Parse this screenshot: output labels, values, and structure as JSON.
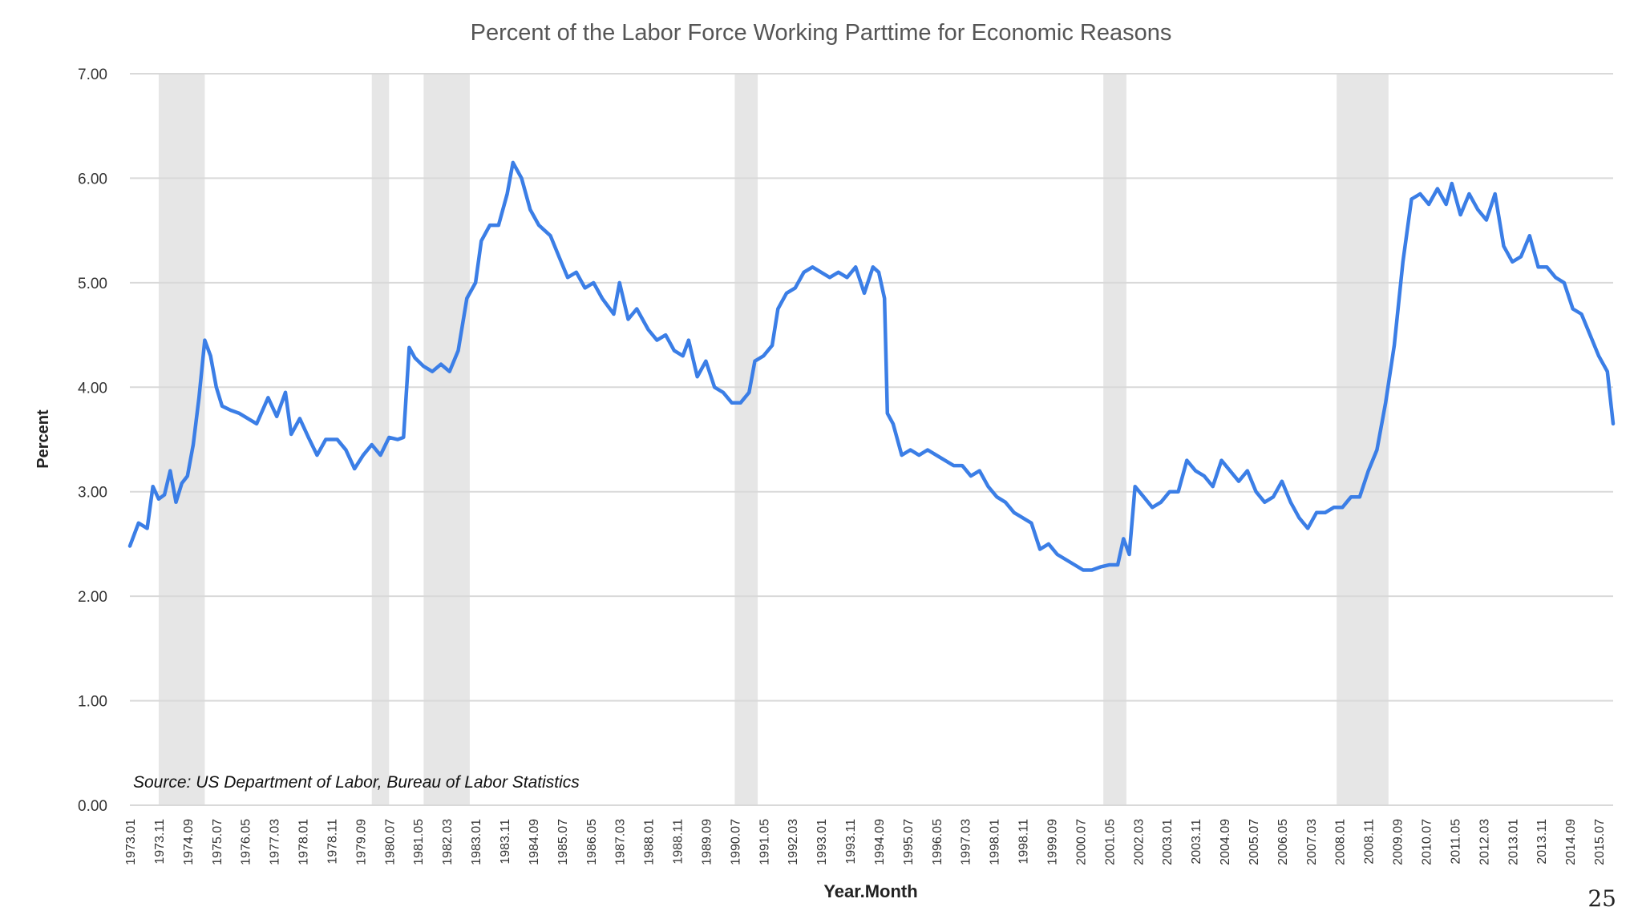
{
  "page": {
    "number": "25"
  },
  "chart_data": {
    "type": "line",
    "title": "Percent of the Labor Force Working Parttime for Economic Reasons",
    "xlabel": "Year.Month",
    "ylabel": "Percent",
    "ylim": [
      0,
      7
    ],
    "yticks": [
      "0.00",
      "1.00",
      "2.00",
      "3.00",
      "4.00",
      "5.00",
      "6.00",
      "7.00"
    ],
    "grid": true,
    "legend": "none",
    "source_note": "Source: US Department of Labor, Bureau of Labor Statistics",
    "colors": {
      "line": "#3b7ee6",
      "recession": "#e6e6e6",
      "grid": "#d9d9d9",
      "text": "#333333"
    },
    "x_range": [
      "1973.01",
      "2015.12"
    ],
    "xticks": [
      "1973.01",
      "1973.11",
      "1974.09",
      "1975.07",
      "1976.05",
      "1977.03",
      "1978.01",
      "1978.11",
      "1979.09",
      "1980.07",
      "1981.05",
      "1982.03",
      "1983.01",
      "1983.11",
      "1984.09",
      "1985.07",
      "1986.05",
      "1987.03",
      "1988.01",
      "1988.11",
      "1989.09",
      "1990.07",
      "1991.05",
      "1992.03",
      "1993.01",
      "1993.11",
      "1994.09",
      "1995.07",
      "1996.05",
      "1997.03",
      "1998.01",
      "1998.11",
      "1999.09",
      "2000.07",
      "2001.05",
      "2002.03",
      "2003.01",
      "2003.11",
      "2004.09",
      "2005.07",
      "2006.05",
      "2007.03",
      "2008.01",
      "2008.11",
      "2009.09",
      "2010.07",
      "2011.05",
      "2012.03",
      "2013.01",
      "2013.11",
      "2014.09",
      "2015.07"
    ],
    "recessions": [
      {
        "start": "1973.11",
        "end": "1975.03"
      },
      {
        "start": "1980.01",
        "end": "1980.07"
      },
      {
        "start": "1981.07",
        "end": "1982.11"
      },
      {
        "start": "1990.07",
        "end": "1991.03"
      },
      {
        "start": "2001.03",
        "end": "2001.11"
      },
      {
        "start": "2007.12",
        "end": "2009.06"
      }
    ],
    "series": [
      {
        "points": [
          [
            "1973.01",
            2.48
          ],
          [
            "1973.04",
            2.7
          ],
          [
            "1973.07",
            2.65
          ],
          [
            "1973.09",
            3.05
          ],
          [
            "1973.11",
            2.93
          ],
          [
            "1974.01",
            2.97
          ],
          [
            "1974.03",
            3.2
          ],
          [
            "1974.05",
            2.9
          ],
          [
            "1974.07",
            3.08
          ],
          [
            "1974.09",
            3.15
          ],
          [
            "1974.11",
            3.45
          ],
          [
            "1975.01",
            3.9
          ],
          [
            "1975.03",
            4.45
          ],
          [
            "1975.05",
            4.3
          ],
          [
            "1975.07",
            4.0
          ],
          [
            "1975.09",
            3.82
          ],
          [
            "1975.12",
            3.78
          ],
          [
            "1976.03",
            3.75
          ],
          [
            "1976.06",
            3.7
          ],
          [
            "1976.09",
            3.65
          ],
          [
            "1977.01",
            3.9
          ],
          [
            "1977.04",
            3.72
          ],
          [
            "1977.07",
            3.95
          ],
          [
            "1977.09",
            3.55
          ],
          [
            "1977.12",
            3.7
          ],
          [
            "1978.03",
            3.52
          ],
          [
            "1978.06",
            3.35
          ],
          [
            "1978.09",
            3.5
          ],
          [
            "1979.01",
            3.5
          ],
          [
            "1979.04",
            3.4
          ],
          [
            "1979.07",
            3.22
          ],
          [
            "1979.10",
            3.35
          ],
          [
            "1980.01",
            3.45
          ],
          [
            "1980.04",
            3.35
          ],
          [
            "1980.07",
            3.52
          ],
          [
            "1980.10",
            3.5
          ],
          [
            "1980.12",
            3.52
          ],
          [
            "1981.02",
            4.38
          ],
          [
            "1981.04",
            4.28
          ],
          [
            "1981.07",
            4.2
          ],
          [
            "1981.10",
            4.15
          ],
          [
            "1982.01",
            4.22
          ],
          [
            "1982.04",
            4.15
          ],
          [
            "1982.07",
            4.35
          ],
          [
            "1982.10",
            4.85
          ],
          [
            "1983.01",
            5.0
          ],
          [
            "1983.03",
            5.4
          ],
          [
            "1983.06",
            5.55
          ],
          [
            "1983.09",
            5.55
          ],
          [
            "1983.12",
            5.85
          ],
          [
            "1984.02",
            6.15
          ],
          [
            "1984.05",
            6.0
          ],
          [
            "1984.08",
            5.7
          ],
          [
            "1984.11",
            5.55
          ],
          [
            "1985.03",
            5.45
          ],
          [
            "1985.06",
            5.25
          ],
          [
            "1985.09",
            5.05
          ],
          [
            "1985.12",
            5.1
          ],
          [
            "1986.03",
            4.95
          ],
          [
            "1986.06",
            5.0
          ],
          [
            "1986.09",
            4.85
          ],
          [
            "1987.01",
            4.7
          ],
          [
            "1987.03",
            5.0
          ],
          [
            "1987.06",
            4.65
          ],
          [
            "1987.09",
            4.75
          ],
          [
            "1988.01",
            4.55
          ],
          [
            "1988.04",
            4.45
          ],
          [
            "1988.07",
            4.5
          ],
          [
            "1988.10",
            4.35
          ],
          [
            "1989.01",
            4.3
          ],
          [
            "1989.03",
            4.45
          ],
          [
            "1989.06",
            4.1
          ],
          [
            "1989.09",
            4.25
          ],
          [
            "1989.12",
            4.0
          ],
          [
            "1990.03",
            3.95
          ],
          [
            "1990.06",
            3.85
          ],
          [
            "1990.09",
            3.85
          ],
          [
            "1990.12",
            3.95
          ],
          [
            "1991.02",
            4.25
          ],
          [
            "1991.05",
            4.3
          ],
          [
            "1991.08",
            4.4
          ],
          [
            "1991.10",
            4.75
          ],
          [
            "1992.01",
            4.9
          ],
          [
            "1992.04",
            4.95
          ],
          [
            "1992.07",
            5.1
          ],
          [
            "1992.10",
            5.15
          ],
          [
            "1993.01",
            5.1
          ],
          [
            "1993.04",
            5.05
          ],
          [
            "1993.07",
            5.1
          ],
          [
            "1993.10",
            5.05
          ],
          [
            "1994.01",
            5.15
          ],
          [
            "1994.04",
            4.9
          ],
          [
            "1994.07",
            5.15
          ],
          [
            "1994.09",
            5.1
          ],
          [
            "1994.11",
            4.85
          ],
          [
            "1994.12",
            3.75
          ],
          [
            "1995.02",
            3.65
          ],
          [
            "1995.05",
            3.35
          ],
          [
            "1995.08",
            3.4
          ],
          [
            "1995.11",
            3.35
          ],
          [
            "1996.02",
            3.4
          ],
          [
            "1996.05",
            3.35
          ],
          [
            "1996.08",
            3.3
          ],
          [
            "1996.11",
            3.25
          ],
          [
            "1997.02",
            3.25
          ],
          [
            "1997.05",
            3.15
          ],
          [
            "1997.08",
            3.2
          ],
          [
            "1997.11",
            3.05
          ],
          [
            "1998.02",
            2.95
          ],
          [
            "1998.05",
            2.9
          ],
          [
            "1998.08",
            2.8
          ],
          [
            "1998.11",
            2.75
          ],
          [
            "1999.02",
            2.7
          ],
          [
            "1999.05",
            2.45
          ],
          [
            "1999.08",
            2.5
          ],
          [
            "1999.11",
            2.4
          ],
          [
            "2000.02",
            2.35
          ],
          [
            "2000.05",
            2.3
          ],
          [
            "2000.08",
            2.25
          ],
          [
            "2000.11",
            2.25
          ],
          [
            "2001.02",
            2.28
          ],
          [
            "2001.05",
            2.3
          ],
          [
            "2001.08",
            2.3
          ],
          [
            "2001.10",
            2.55
          ],
          [
            "2001.12",
            2.4
          ],
          [
            "2002.02",
            3.05
          ],
          [
            "2002.05",
            2.95
          ],
          [
            "2002.08",
            2.85
          ],
          [
            "2002.11",
            2.9
          ],
          [
            "2003.02",
            3.0
          ],
          [
            "2003.05",
            3.0
          ],
          [
            "2003.08",
            3.3
          ],
          [
            "2003.11",
            3.2
          ],
          [
            "2004.02",
            3.15
          ],
          [
            "2004.05",
            3.05
          ],
          [
            "2004.08",
            3.3
          ],
          [
            "2004.11",
            3.2
          ],
          [
            "2005.02",
            3.1
          ],
          [
            "2005.05",
            3.2
          ],
          [
            "2005.08",
            3.0
          ],
          [
            "2005.11",
            2.9
          ],
          [
            "2006.02",
            2.95
          ],
          [
            "2006.05",
            3.1
          ],
          [
            "2006.08",
            2.9
          ],
          [
            "2006.11",
            2.75
          ],
          [
            "2007.02",
            2.65
          ],
          [
            "2007.05",
            2.8
          ],
          [
            "2007.08",
            2.8
          ],
          [
            "2007.11",
            2.85
          ],
          [
            "2008.02",
            2.85
          ],
          [
            "2008.05",
            2.95
          ],
          [
            "2008.08",
            2.95
          ],
          [
            "2008.11",
            3.2
          ],
          [
            "2009.02",
            3.4
          ],
          [
            "2009.05",
            3.85
          ],
          [
            "2009.08",
            4.4
          ],
          [
            "2009.11",
            5.2
          ],
          [
            "2010.02",
            5.8
          ],
          [
            "2010.05",
            5.85
          ],
          [
            "2010.08",
            5.75
          ],
          [
            "2010.11",
            5.9
          ],
          [
            "2011.02",
            5.75
          ],
          [
            "2011.04",
            5.95
          ],
          [
            "2011.07",
            5.65
          ],
          [
            "2011.10",
            5.85
          ],
          [
            "2012.01",
            5.7
          ],
          [
            "2012.04",
            5.6
          ],
          [
            "2012.07",
            5.85
          ],
          [
            "2012.10",
            5.35
          ],
          [
            "2013.01",
            5.2
          ],
          [
            "2013.04",
            5.25
          ],
          [
            "2013.07",
            5.45
          ],
          [
            "2013.10",
            5.15
          ],
          [
            "2014.01",
            5.15
          ],
          [
            "2014.04",
            5.05
          ],
          [
            "2014.07",
            5.0
          ],
          [
            "2014.10",
            4.75
          ],
          [
            "2015.01",
            4.7
          ],
          [
            "2015.04",
            4.5
          ],
          [
            "2015.07",
            4.3
          ],
          [
            "2015.10",
            4.15
          ],
          [
            "2015.12",
            3.65
          ]
        ]
      }
    ]
  }
}
